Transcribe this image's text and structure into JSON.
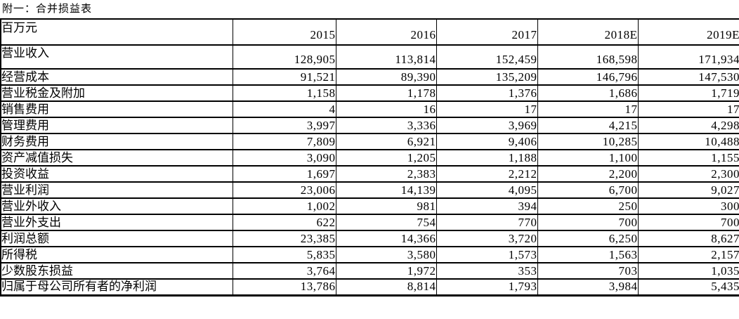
{
  "page_title": "附一：合并损益表",
  "colors": {
    "background": "#ffffff",
    "border": "#000000",
    "text": "#000000"
  },
  "table": {
    "unit_header": "百万元",
    "columns": [
      "2015",
      "2016",
      "2017",
      "2018E",
      "2019E"
    ],
    "rows": [
      {
        "label": "营业收入",
        "values": [
          "128,905",
          "113,814",
          "152,459",
          "168,598",
          "171,934"
        ]
      },
      {
        "label": "经营成本",
        "values": [
          "91,521",
          "89,390",
          "135,209",
          "146,796",
          "147,530"
        ]
      },
      {
        "label": "营业税金及附加",
        "values": [
          "1,158",
          "1,178",
          "1,376",
          "1,686",
          "1,719"
        ]
      },
      {
        "label": "销售费用",
        "values": [
          "4",
          "16",
          "17",
          "17",
          "17"
        ]
      },
      {
        "label": "管理费用",
        "values": [
          "3,997",
          "3,336",
          "3,969",
          "4,215",
          "4,298"
        ]
      },
      {
        "label": "财务费用",
        "values": [
          "7,809",
          "6,921",
          "9,406",
          "10,285",
          "10,488"
        ]
      },
      {
        "label": "资产减值损失",
        "values": [
          "3,090",
          "1,205",
          "1,188",
          "1,100",
          "1,155"
        ]
      },
      {
        "label": "投资收益",
        "values": [
          "1,697",
          "2,383",
          "2,212",
          "2,200",
          "2,300"
        ]
      },
      {
        "label": "营业利润",
        "values": [
          "23,006",
          "14,139",
          "4,095",
          "6,700",
          "9,027"
        ]
      },
      {
        "label": "营业外收入",
        "values": [
          "1,002",
          "981",
          "394",
          "250",
          "300"
        ]
      },
      {
        "label": "营业外支出",
        "values": [
          "622",
          "754",
          "770",
          "700",
          "700"
        ]
      },
      {
        "label": "利润总额",
        "values": [
          "23,385",
          "14,366",
          "3,720",
          "6,250",
          "8,627"
        ]
      },
      {
        "label": "所得税",
        "values": [
          "5,835",
          "3,580",
          "1,573",
          "1,563",
          "2,157"
        ]
      },
      {
        "label": "少数股东损益",
        "values": [
          "3,764",
          "1,972",
          "353",
          "703",
          "1,035"
        ]
      },
      {
        "label": "归属于母公司所有者的净利润",
        "values": [
          "13,786",
          "8,814",
          "1,793",
          "3,984",
          "5,435"
        ]
      }
    ]
  },
  "chart_data": {
    "type": "table",
    "title": "附一：合并损益表",
    "unit": "百万元",
    "categories": [
      "2015",
      "2016",
      "2017",
      "2018E",
      "2019E"
    ],
    "series": [
      {
        "name": "营业收入",
        "values": [
          128905,
          113814,
          152459,
          168598,
          171934
        ]
      },
      {
        "name": "经营成本",
        "values": [
          91521,
          89390,
          135209,
          146796,
          147530
        ]
      },
      {
        "name": "营业税金及附加",
        "values": [
          1158,
          1178,
          1376,
          1686,
          1719
        ]
      },
      {
        "name": "销售费用",
        "values": [
          4,
          16,
          17,
          17,
          17
        ]
      },
      {
        "name": "管理费用",
        "values": [
          3997,
          3336,
          3969,
          4215,
          4298
        ]
      },
      {
        "name": "财务费用",
        "values": [
          7809,
          6921,
          9406,
          10285,
          10488
        ]
      },
      {
        "name": "资产减值损失",
        "values": [
          3090,
          1205,
          1188,
          1100,
          1155
        ]
      },
      {
        "name": "投资收益",
        "values": [
          1697,
          2383,
          2212,
          2200,
          2300
        ]
      },
      {
        "name": "营业利润",
        "values": [
          23006,
          14139,
          4095,
          6700,
          9027
        ]
      },
      {
        "name": "营业外收入",
        "values": [
          1002,
          981,
          394,
          250,
          300
        ]
      },
      {
        "name": "营业外支出",
        "values": [
          622,
          754,
          770,
          700,
          700
        ]
      },
      {
        "name": "利润总额",
        "values": [
          23385,
          14366,
          3720,
          6250,
          8627
        ]
      },
      {
        "name": "所得税",
        "values": [
          5835,
          3580,
          1573,
          1563,
          2157
        ]
      },
      {
        "name": "少数股东损益",
        "values": [
          3764,
          1972,
          353,
          703,
          1035
        ]
      },
      {
        "name": "归属于母公司所有者的净利润",
        "values": [
          13786,
          8814,
          1793,
          3984,
          5435
        ]
      }
    ]
  }
}
